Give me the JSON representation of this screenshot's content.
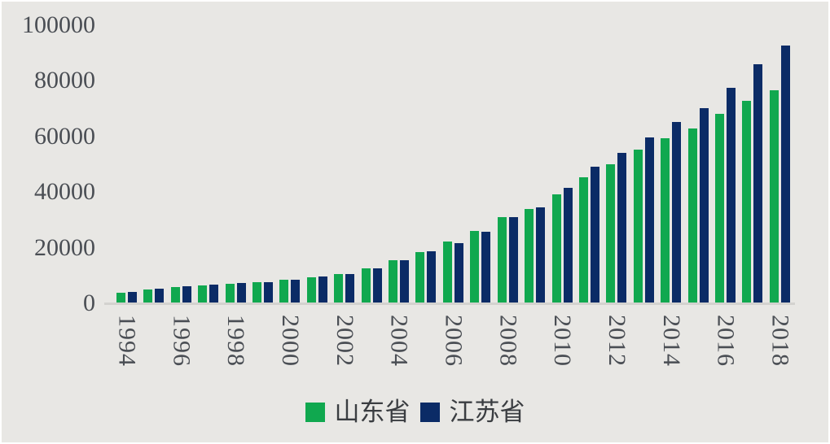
{
  "chart_data": {
    "type": "bar",
    "title": "",
    "xlabel": "",
    "ylabel": "",
    "categories": [
      "1994",
      "1995",
      "1996",
      "1997",
      "1998",
      "1999",
      "2000",
      "2001",
      "2002",
      "2003",
      "2004",
      "2005",
      "2006",
      "2007",
      "2008",
      "2009",
      "2010",
      "2011",
      "2012",
      "2013",
      "2014",
      "2015",
      "2016",
      "2017",
      "2018"
    ],
    "series": [
      {
        "name": "山东省",
        "key": "shandong",
        "color": "#10a84f",
        "values": [
          3845,
          4953,
          5884,
          6537,
          7162,
          7662,
          8542,
          9438,
          10552,
          12436,
          15491,
          18517,
          22077,
          25966,
          31072,
          33897,
          39170,
          45362,
          50013,
          55230,
          59427,
          63002,
          68025,
          72678,
          76470
        ]
      },
      {
        "name": "江苏省",
        "key": "jiangsu",
        "color": "#0b2b66",
        "values": [
          4057,
          5155,
          6004,
          6680,
          7200,
          7698,
          8583,
          9512,
          10632,
          12461,
          15404,
          18599,
          21645,
          25741,
          30982,
          34457,
          41425,
          49110,
          54058,
          59753,
          65088,
          70116,
          77388,
          85901,
          92595
        ]
      }
    ],
    "ylim": [
      0,
      100000
    ],
    "yticks": [
      0,
      20000,
      40000,
      60000,
      80000,
      100000
    ],
    "xtick_labels": [
      "1994",
      "1996",
      "1998",
      "2000",
      "2002",
      "2004",
      "2006",
      "2008",
      "2010",
      "2012",
      "2014",
      "2016",
      "2018"
    ],
    "grid": false,
    "legend_position": "bottom",
    "colors": {
      "background": "#e8e7e4",
      "axis_text": "#4a4e54",
      "baseline": "#d3d2cf",
      "legend_text": "#3a3d41"
    }
  }
}
